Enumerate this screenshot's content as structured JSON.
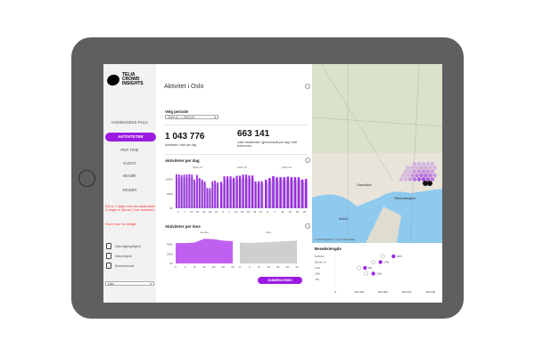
{
  "brand": {
    "logo_text": "TELIA CROWD INSIGHTS"
  },
  "sidebar": {
    "items": [
      {
        "label": "KOMMUNENS PULS"
      },
      {
        "label": "AKTIVITETER"
      },
      {
        "label": "PER TIME"
      },
      {
        "label": "EVENT"
      },
      {
        "label": "BESØK"
      },
      {
        "label": "REISER"
      }
    ],
    "warning": "Det er 1 dager med lav datakvalitet (1 dager er fjernet, 0 har advarsler)",
    "hover_hint": "Hovre over for detaljer",
    "tools": [
      {
        "label": "Data tilgjengelighet"
      },
      {
        "label": "Data eksport"
      },
      {
        "label": "Brukermanual"
      }
    ],
    "city_select": "Oslo"
  },
  "main": {
    "title": "Aktivitet i Oslo",
    "period_label": "Velg periode",
    "period_value": "2020-12 — 2021-02",
    "kpi1": {
      "value": "1 043 776",
      "label": "Aktiviteter i snitt per dag"
    },
    "kpi2": {
      "value": "663 141",
      "label": "unike besøkende i gjennomsnitt per dag i hele kommunen"
    },
    "compare_button": "SAMMENLIGNING"
  },
  "colors": {
    "accent": "#9b1be0",
    "bar": "#9b2ce6",
    "gray": "#cfcfcf"
  },
  "chart_data": [
    {
      "type": "bar",
      "title": "Aktiviteter per dag",
      "ylabel": "",
      "yticks": [
        "0K",
        "500K",
        "1000K"
      ],
      "ylim": [
        0,
        1300
      ],
      "panels": [
        {
          "name": "2020-12",
          "xticks": [
            "3",
            "7",
            "11",
            "15",
            "19",
            "23",
            "27"
          ],
          "values": [
            1180,
            1180,
            1150,
            1170,
            1170,
            1190,
            1170,
            1000,
            1160,
            1050,
            1000,
            930,
            700,
            700,
            940,
            960,
            900
          ]
        },
        {
          "name": "2021-01",
          "xticks": [
            "3",
            "7",
            "11",
            "15",
            "19",
            "23",
            "27"
          ],
          "values": [
            920,
            1110,
            1110,
            1110,
            1060,
            1130,
            1130,
            1170,
            1170,
            1140,
            1140,
            930,
            940,
            940
          ]
        },
        {
          "name": "2021-02",
          "xticks": [
            "3",
            "7",
            "11",
            "15",
            "19",
            "23"
          ],
          "values": [
            990,
            1050,
            1120,
            1080,
            1080,
            1080,
            1100,
            1080,
            1080,
            1080,
            1000,
            1020
          ]
        }
      ]
    },
    {
      "type": "area",
      "title": "Aktiviteter per time",
      "yticks": [
        "0K",
        "200K",
        "400K"
      ],
      "ylim": [
        0,
        600
      ],
      "panels": [
        {
          "name": "ukedag",
          "x": [
            0,
            4,
            8,
            12,
            16,
            20,
            24
          ],
          "values": [
            430,
            430,
            440,
            520,
            510,
            480,
            470
          ]
        },
        {
          "name": "helg",
          "x": [
            0,
            4,
            8,
            12,
            16,
            20,
            24
          ],
          "values": [
            440,
            430,
            440,
            450,
            460,
            470,
            480
          ]
        }
      ]
    },
    {
      "type": "scatter",
      "title": "Besøkslengde",
      "categories": [
        "5-20min",
        "20min-1h",
        "1-2h",
        "2-5h",
        ">5h"
      ],
      "xticks": [
        "0",
        "100 000",
        "200 000",
        "300 000",
        "400 000"
      ],
      "xlim": [
        0,
        420000
      ],
      "previous": [
        200000,
        160000,
        100000,
        130000,
        null
      ],
      "current": [
        245000,
        190000,
        125000,
        160000,
        null
      ],
      "labels": [
        "19%",
        "13%",
        "8%",
        "10%",
        ""
      ]
    }
  ],
  "map": {
    "places": [
      "Sandvika",
      "Asker",
      "Nesodtangen"
    ],
    "attribution": "© 2020 Mapbox © OpenStreetMap"
  }
}
